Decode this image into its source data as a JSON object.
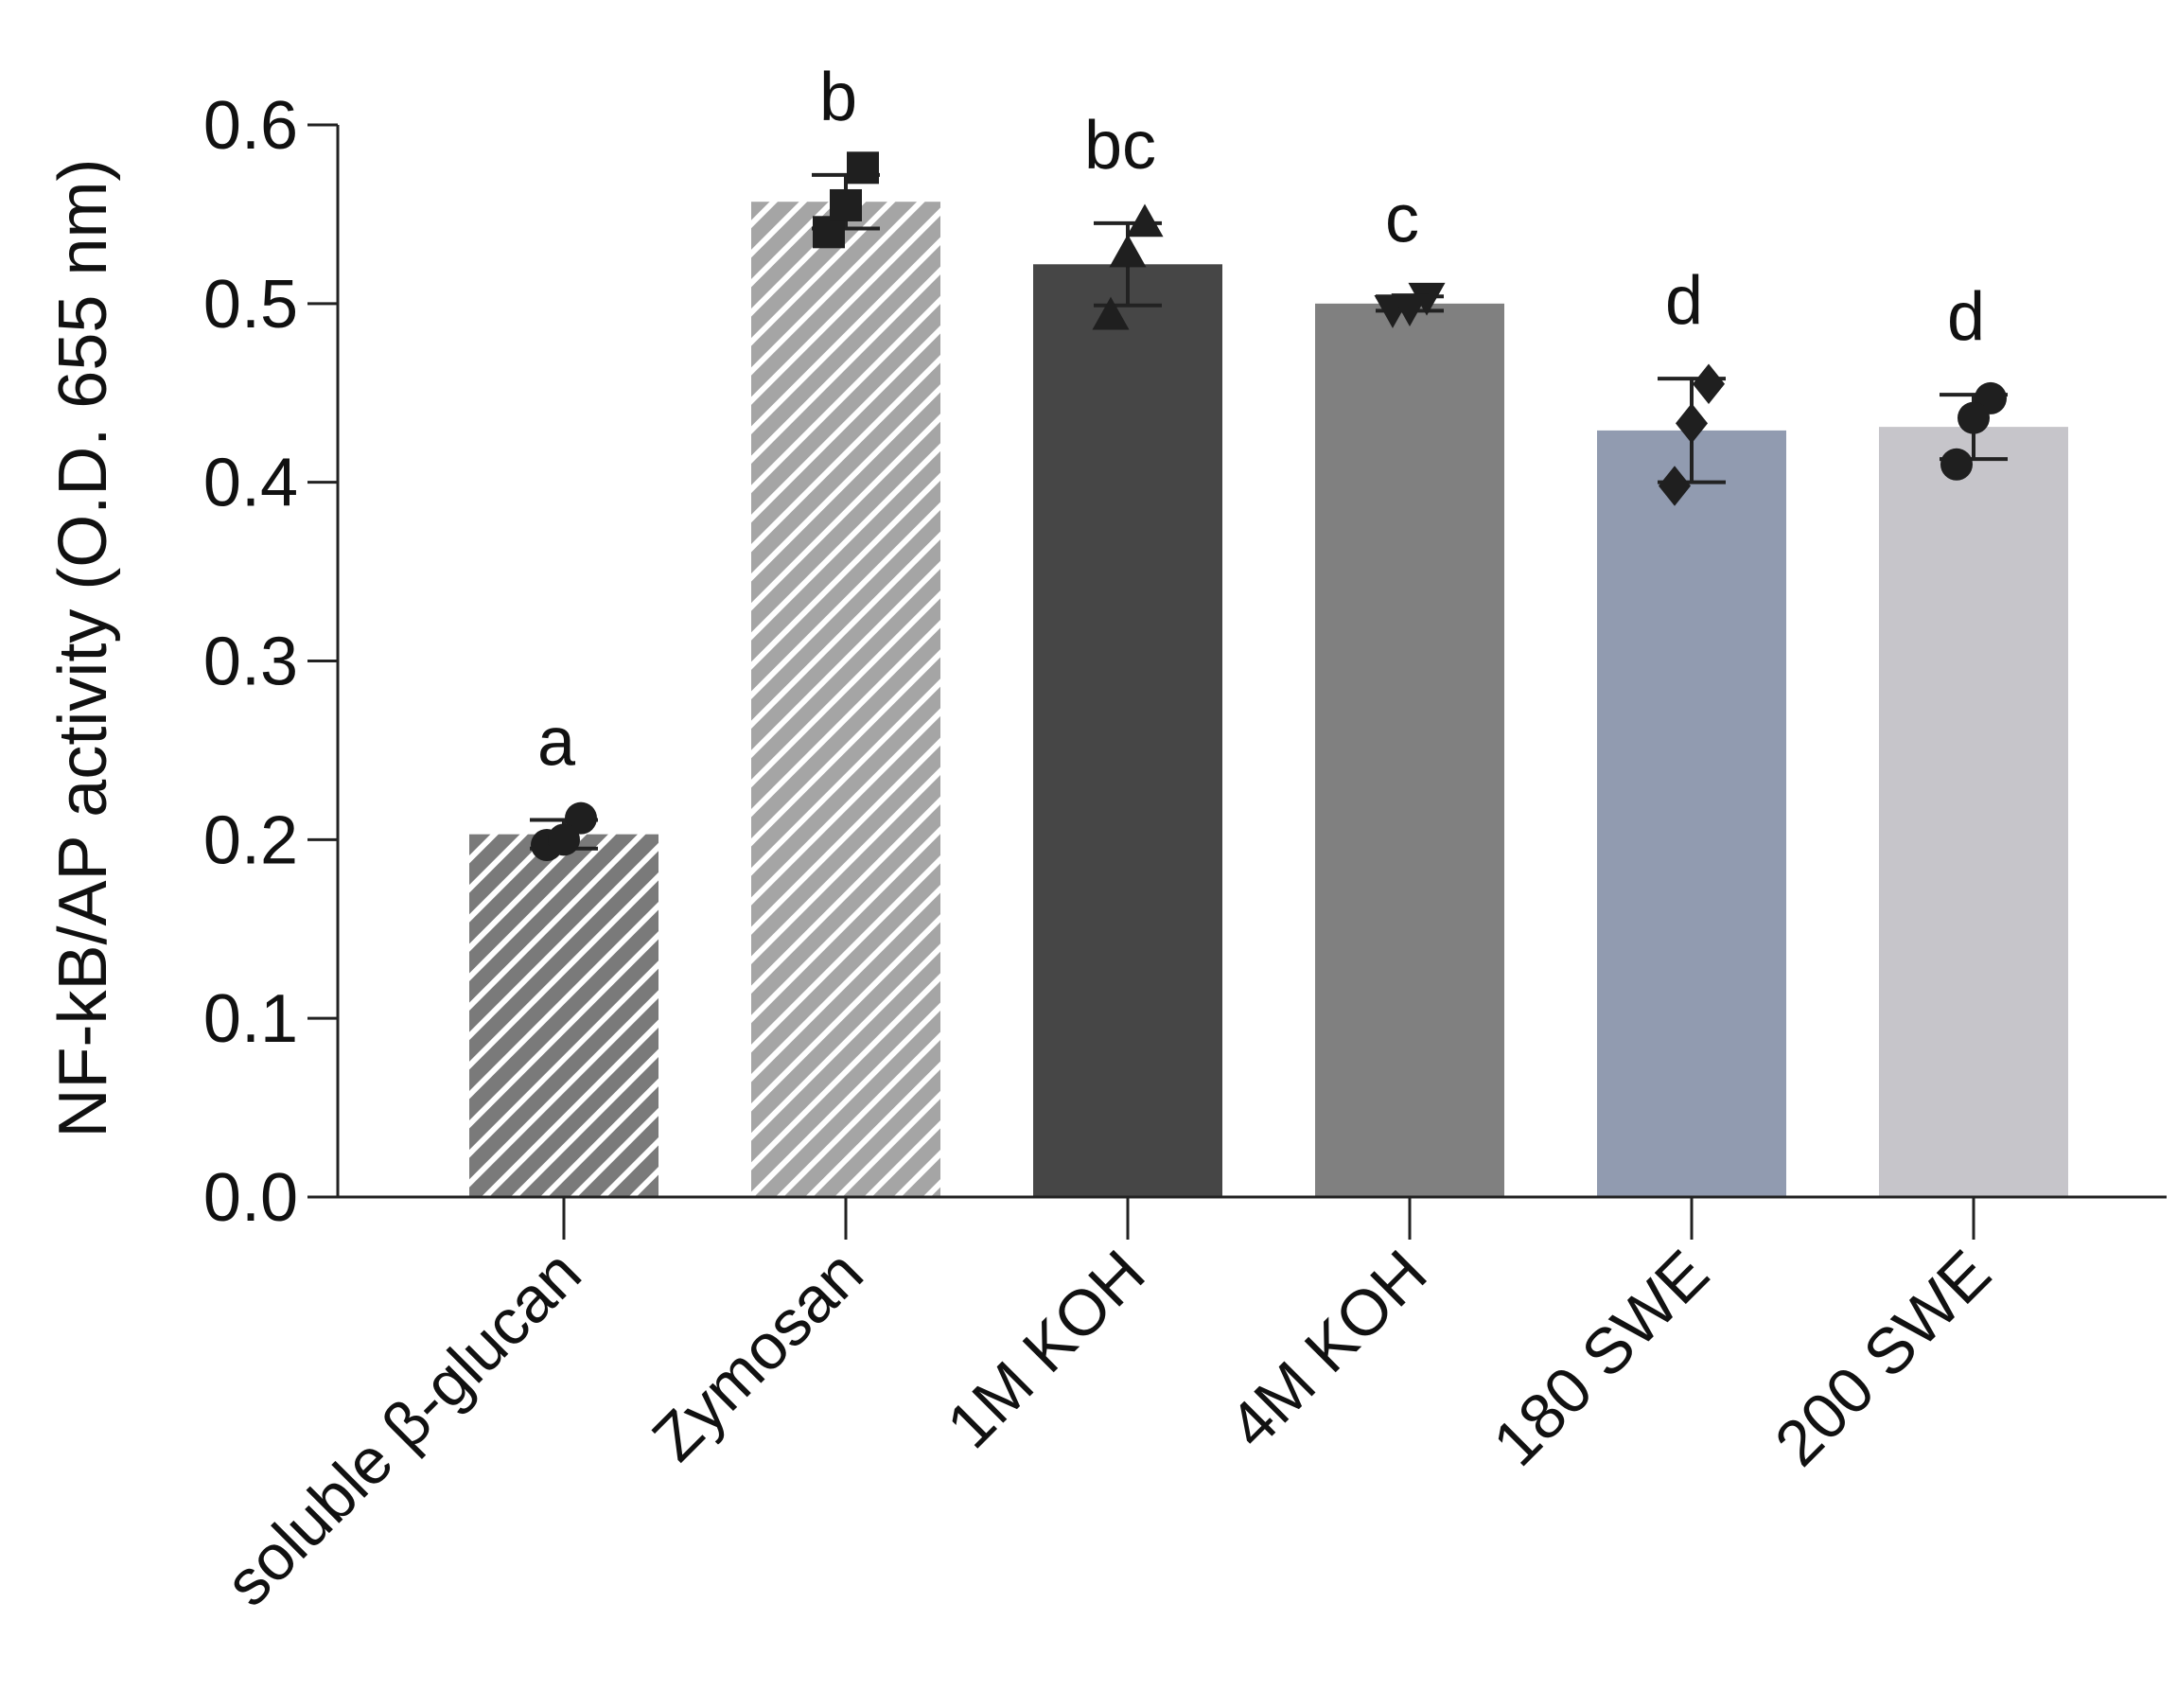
{
  "chart_data": {
    "type": "bar",
    "title": "",
    "xlabel": "",
    "ylabel": "NF-kB/AP activity (O.D. 655 nm)",
    "ylim": [
      0,
      0.6
    ],
    "yticks": [
      "0.0",
      "0.1",
      "0.2",
      "0.3",
      "0.4",
      "0.5",
      "0.6"
    ],
    "categories": [
      "soluble β-glucan",
      "Zymosan",
      "1M KOH",
      "4M KOH",
      "180 SWE",
      "200 SWE"
    ],
    "values": [
      0.203,
      0.557,
      0.522,
      0.5,
      0.429,
      0.431
    ],
    "error": [
      0.008,
      0.015,
      0.023,
      0.004,
      0.029,
      0.018
    ],
    "points": [
      [
        0.197,
        0.212,
        0.2
      ],
      [
        0.54,
        0.576,
        0.555
      ],
      [
        0.493,
        0.545,
        0.528
      ],
      [
        0.497,
        0.504,
        0.498
      ],
      [
        0.398,
        0.455,
        0.433
      ],
      [
        0.41,
        0.447,
        0.436
      ]
    ],
    "significance": [
      "a",
      "b",
      "bc",
      "c",
      "d",
      "d"
    ],
    "markers": [
      "circle",
      "square",
      "triangle-up",
      "triangle-down",
      "diamond",
      "circle"
    ],
    "fills": [
      "hatch-dark",
      "hatch-light",
      "#464646",
      "#808080",
      "#919bb0",
      "#c6c5ca"
    ],
    "colors": {
      "hatch_dark": "#7a7a7a",
      "hatch_light": "#a5a5a5",
      "hatch_stripe": "#ffffff",
      "axis": "#222222",
      "marker": "#1f1f1f"
    }
  }
}
